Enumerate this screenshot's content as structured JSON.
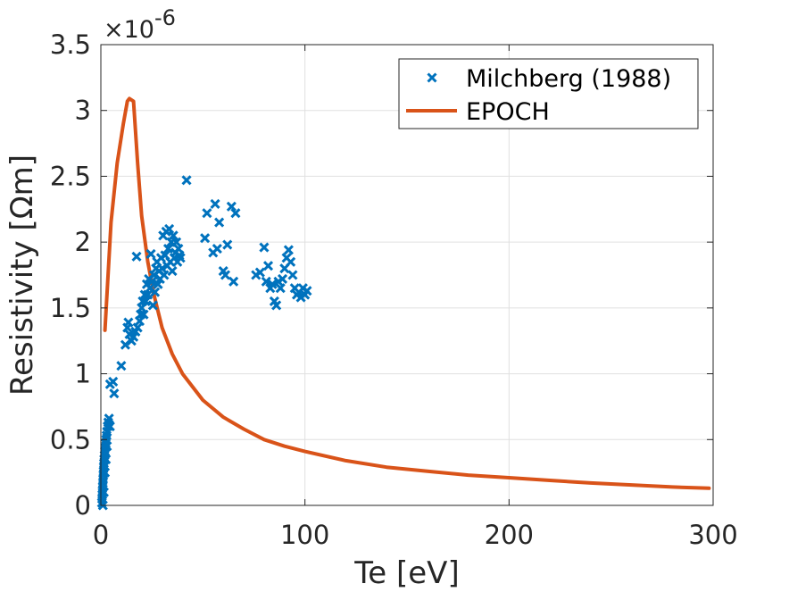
{
  "chart_data": {
    "type": "scatter",
    "title": "",
    "xlabel": "Te [eV]",
    "ylabel": "Resistivity [Ωm]",
    "xlim": [
      0,
      300
    ],
    "ylim": [
      0,
      3.5
    ],
    "y_scale_exponent": {
      "base": "×10",
      "power": "-6"
    },
    "x_ticks": [
      0,
      100,
      200,
      300
    ],
    "x_tick_labels": [
      "0",
      "100",
      "200",
      "300"
    ],
    "y_ticks": [
      0,
      0.5,
      1,
      1.5,
      2,
      2.5,
      3,
      3.5
    ],
    "y_tick_labels": [
      "0",
      "0.5",
      "1",
      "1.5",
      "2",
      "2.5",
      "3",
      "3.5"
    ],
    "grid": true,
    "legend_position": "top-right",
    "colors": {
      "milchberg": "#0072BD",
      "epoch": "#D95319",
      "grid": "#e0e0e0",
      "axis": "#262626"
    },
    "series": [
      {
        "name": "Milchberg (1988)",
        "type": "scatter",
        "marker": "x",
        "points": [
          [
            0.5,
            0.02
          ],
          [
            0.6,
            0.05
          ],
          [
            0.7,
            0.08
          ],
          [
            0.8,
            0.11
          ],
          [
            0.9,
            0.14
          ],
          [
            1.0,
            0.17
          ],
          [
            1.1,
            0.2
          ],
          [
            1.2,
            0.23
          ],
          [
            1.3,
            0.26
          ],
          [
            1.4,
            0.29
          ],
          [
            1.5,
            0.32
          ],
          [
            1.6,
            0.35
          ],
          [
            1.8,
            0.38
          ],
          [
            2.0,
            0.41
          ],
          [
            2.2,
            0.44
          ],
          [
            2.4,
            0.47
          ],
          [
            2.6,
            0.5
          ],
          [
            2.8,
            0.53
          ],
          [
            3.0,
            0.56
          ],
          [
            3.3,
            0.6
          ],
          [
            3.6,
            0.63
          ],
          [
            4.0,
            0.66
          ],
          [
            4.5,
            0.6
          ],
          [
            1.0,
            0.0
          ],
          [
            1.5,
            0.1
          ],
          [
            2.0,
            0.25
          ],
          [
            2.5,
            0.35
          ],
          [
            3.0,
            0.45
          ],
          [
            4.5,
            0.92
          ],
          [
            6,
            0.94
          ],
          [
            6.5,
            0.85
          ],
          [
            10,
            1.06
          ],
          [
            12,
            1.22
          ],
          [
            13,
            1.35
          ],
          [
            13.5,
            1.39
          ],
          [
            14,
            1.3
          ],
          [
            15,
            1.25
          ],
          [
            16,
            1.28
          ],
          [
            17,
            1.32
          ],
          [
            17.5,
            1.89
          ],
          [
            18,
            1.35
          ],
          [
            19,
            1.4
          ],
          [
            19.5,
            1.45
          ],
          [
            20,
            1.5
          ],
          [
            20.5,
            1.55
          ],
          [
            21,
            1.45
          ],
          [
            21.5,
            1.6
          ],
          [
            22,
            1.55
          ],
          [
            22.5,
            1.68
          ],
          [
            23,
            1.6
          ],
          [
            23.5,
            1.72
          ],
          [
            24,
            1.65
          ],
          [
            24.5,
            1.91
          ],
          [
            25,
            1.7
          ],
          [
            25.5,
            1.52
          ],
          [
            26,
            1.75
          ],
          [
            26.5,
            1.62
          ],
          [
            27,
            1.8
          ],
          [
            27.5,
            1.85
          ],
          [
            28,
            1.68
          ],
          [
            28.5,
            1.78
          ],
          [
            29,
            1.72
          ],
          [
            29.5,
            1.88
          ],
          [
            30,
            1.8
          ],
          [
            30.5,
            2.05
          ],
          [
            31,
            1.75
          ],
          [
            31.5,
            1.9
          ],
          [
            32,
            2.08
          ],
          [
            32.5,
            1.82
          ],
          [
            33,
            1.95
          ],
          [
            33.5,
            2.1
          ],
          [
            34,
            1.85
          ],
          [
            34.5,
            2.0
          ],
          [
            35,
            1.78
          ],
          [
            35.5,
            2.05
          ],
          [
            36,
            1.88
          ],
          [
            36.5,
            1.92
          ],
          [
            37,
            2.0
          ],
          [
            37.5,
            1.85
          ],
          [
            38,
            1.95
          ],
          [
            38.5,
            1.9
          ],
          [
            39,
            1.88
          ],
          [
            42,
            2.47
          ],
          [
            51,
            2.03
          ],
          [
            52,
            2.22
          ],
          [
            55,
            1.92
          ],
          [
            56,
            2.29
          ],
          [
            57,
            1.95
          ],
          [
            58,
            2.15
          ],
          [
            60,
            1.78
          ],
          [
            61,
            1.75
          ],
          [
            62,
            1.98
          ],
          [
            64,
            2.27
          ],
          [
            65,
            1.7
          ],
          [
            66,
            2.22
          ],
          [
            76,
            1.75
          ],
          [
            78,
            1.77
          ],
          [
            80,
            1.96
          ],
          [
            81,
            1.7
          ],
          [
            82,
            1.82
          ],
          [
            83,
            1.65
          ],
          [
            84,
            1.68
          ],
          [
            85,
            1.55
          ],
          [
            86,
            1.52
          ],
          [
            87,
            1.7
          ],
          [
            88,
            1.65
          ],
          [
            89,
            1.72
          ],
          [
            90,
            1.8
          ],
          [
            91,
            1.88
          ],
          [
            92,
            1.94
          ],
          [
            93,
            1.85
          ],
          [
            94,
            1.75
          ],
          [
            95,
            1.65
          ],
          [
            96,
            1.6
          ],
          [
            97,
            1.62
          ],
          [
            98,
            1.58
          ],
          [
            99,
            1.65
          ],
          [
            100,
            1.6
          ],
          [
            101,
            1.63
          ]
        ]
      },
      {
        "name": "EPOCH",
        "type": "line",
        "points": [
          [
            2,
            1.33
          ],
          [
            5,
            2.15
          ],
          [
            8,
            2.6
          ],
          [
            11,
            2.9
          ],
          [
            13,
            3.07
          ],
          [
            14,
            3.09
          ],
          [
            16,
            3.07
          ],
          [
            18,
            2.6
          ],
          [
            20,
            2.2
          ],
          [
            23,
            1.85
          ],
          [
            26,
            1.6
          ],
          [
            30,
            1.35
          ],
          [
            35,
            1.15
          ],
          [
            40,
            1.0
          ],
          [
            50,
            0.8
          ],
          [
            60,
            0.67
          ],
          [
            70,
            0.58
          ],
          [
            80,
            0.5
          ],
          [
            90,
            0.45
          ],
          [
            100,
            0.41
          ],
          [
            120,
            0.34
          ],
          [
            140,
            0.29
          ],
          [
            160,
            0.26
          ],
          [
            180,
            0.23
          ],
          [
            200,
            0.21
          ],
          [
            220,
            0.19
          ],
          [
            240,
            0.17
          ],
          [
            260,
            0.155
          ],
          [
            280,
            0.14
          ],
          [
            298,
            0.13
          ]
        ]
      }
    ]
  }
}
